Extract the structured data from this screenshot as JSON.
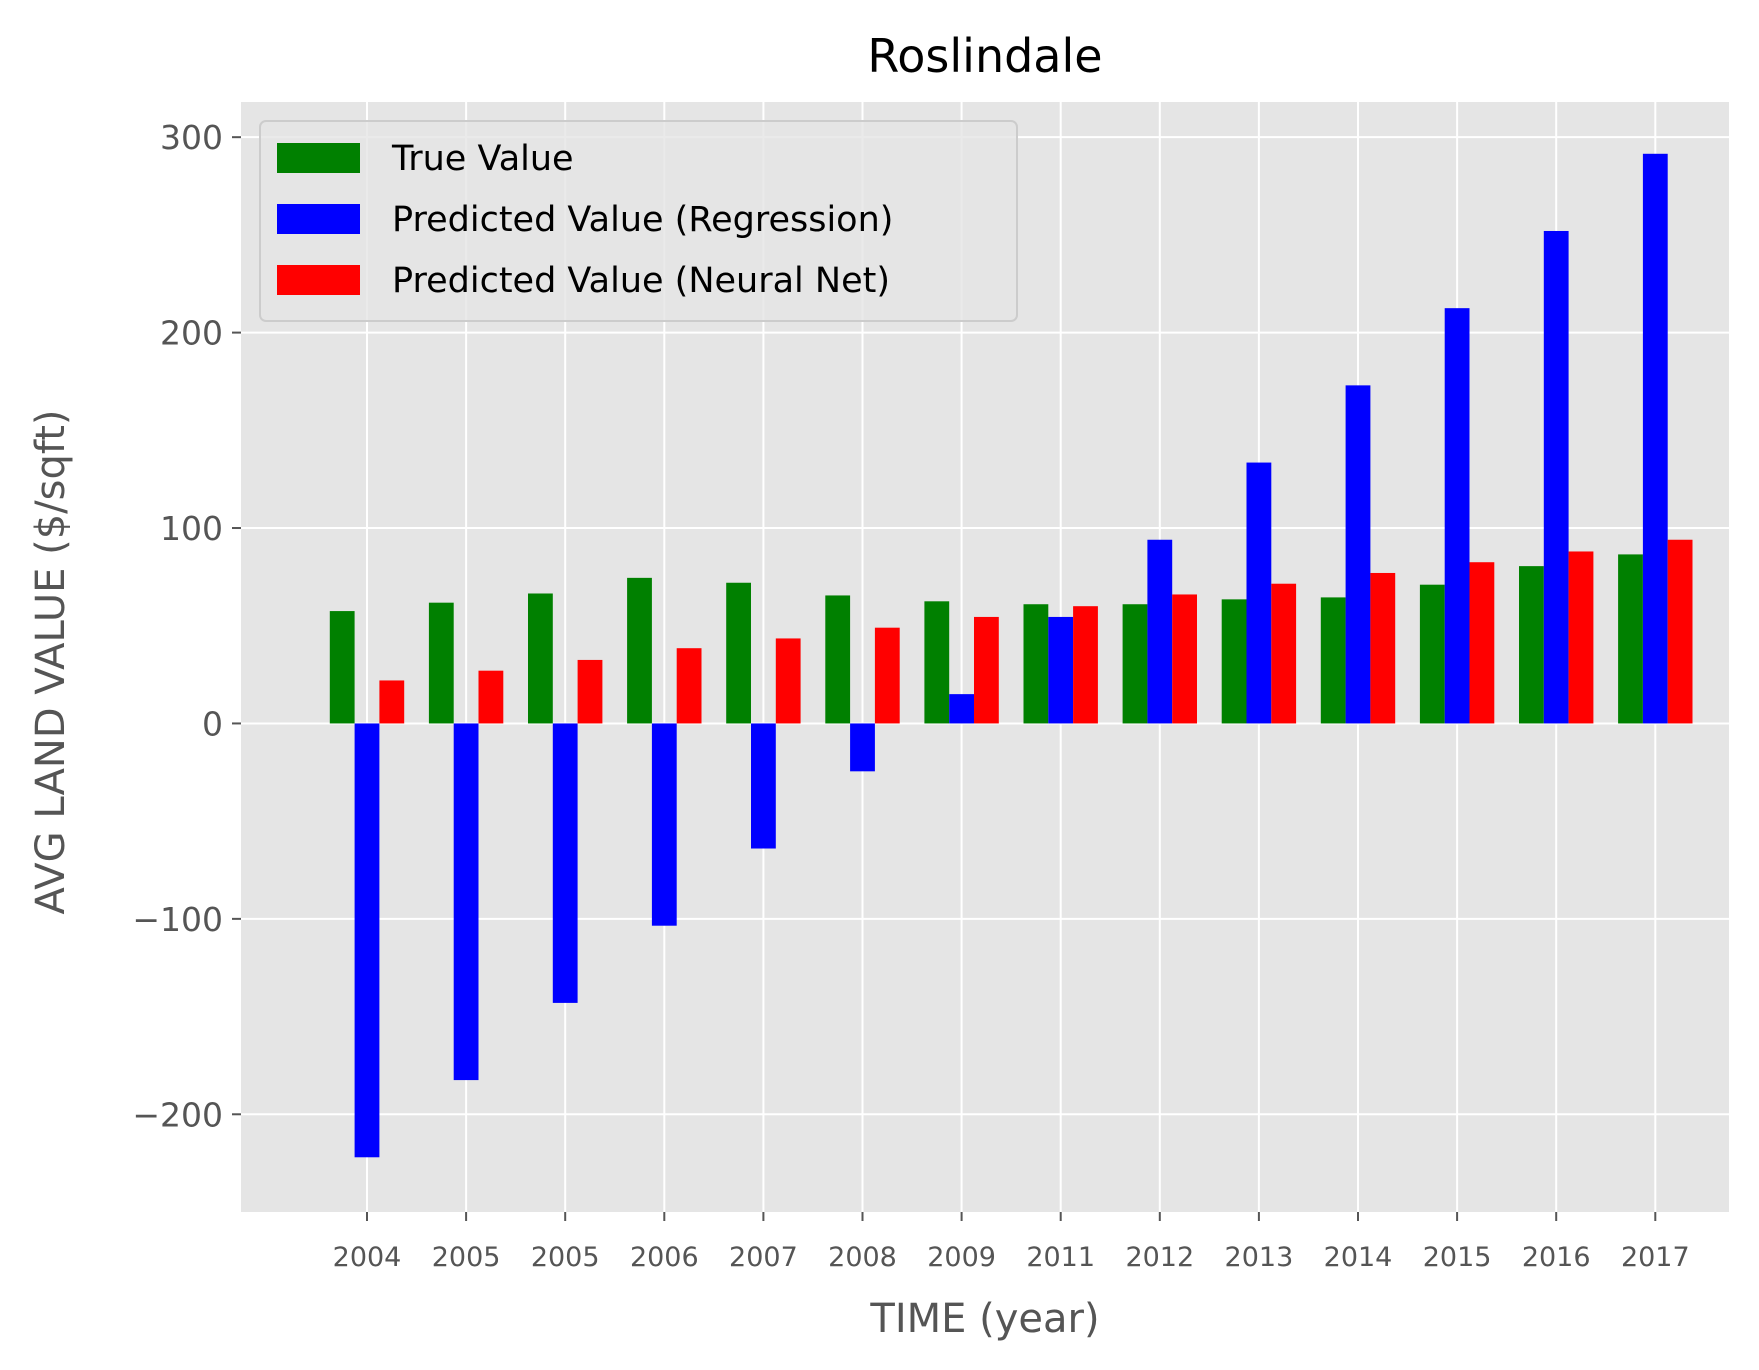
{
  "chart_data": {
    "type": "bar",
    "title": "Roslindale",
    "xlabel": "TIME (year)",
    "ylabel": "AVG LAND VALUE ($/sqft)",
    "ylim": [
      -250,
      318
    ],
    "yticks": [
      -200,
      -100,
      0,
      100,
      200,
      300
    ],
    "ytick_labels": [
      "−200",
      "−100",
      "0",
      "100",
      "200",
      "300"
    ],
    "grid": true,
    "legend_position": "top-left",
    "categories": [
      "2004",
      "2005",
      "2005",
      "2006",
      "2007",
      "2008",
      "2009",
      "2011",
      "2012",
      "2013",
      "2014",
      "2015",
      "2016",
      "2017"
    ],
    "series": [
      {
        "name": "True Value",
        "color": "#008000",
        "values": [
          57.5,
          61.8,
          66.5,
          74.5,
          72,
          65.5,
          62.5,
          61,
          61,
          63.5,
          64.5,
          71,
          80.5,
          86.5
        ]
      },
      {
        "name": "Predicted Value (Regression)",
        "color": "#0000ff",
        "values": [
          -222,
          -182.5,
          -143,
          -103.5,
          -64,
          -24.5,
          15,
          54.5,
          94,
          133.5,
          173,
          212.5,
          252,
          291.5
        ]
      },
      {
        "name": "Predicted Value (Neural Net)",
        "color": "#ff0000",
        "values": [
          22,
          27,
          32.5,
          38.5,
          43.5,
          49,
          54.5,
          60,
          66,
          71.5,
          77,
          82.5,
          88,
          94
        ]
      }
    ],
    "colors": {
      "plot_background": "#e5e5e5",
      "grid": "#ffffff",
      "text": "#555555",
      "title": "#000000"
    }
  }
}
